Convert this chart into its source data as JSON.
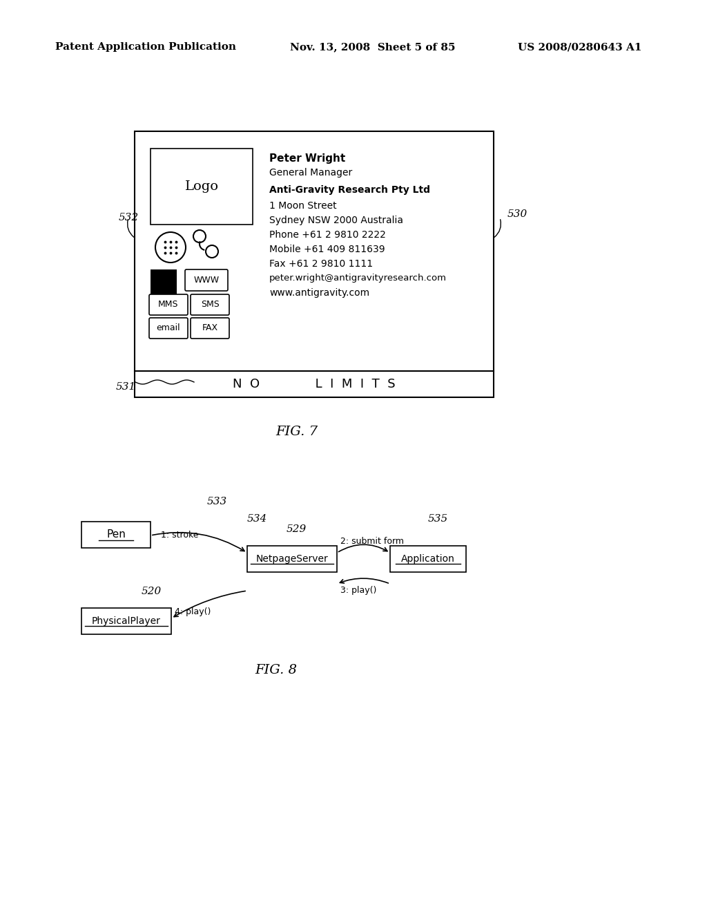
{
  "bg_color": "#ffffff",
  "header_left": "Patent Application Publication",
  "header_mid": "Nov. 13, 2008  Sheet 5 of 85",
  "header_right": "US 2008/0280643 A1",
  "fig7_title": "FIG. 7",
  "fig8_title": "FIG. 8",
  "card_label": "530",
  "card_left_label": "532",
  "card_bottom_label": "531",
  "card_tagline": "N  O              L  I  M  I  T  S",
  "card_name": "Peter Wright",
  "card_title_text": "General Manager",
  "card_company": "Anti-Gravity Research Pty Ltd",
  "card_address1": "1 Moon Street",
  "card_address2": "Sydney NSW 2000 Australia",
  "card_phone": "Phone +61 2 9810 2222",
  "card_mobile": "Mobile +61 409 811639",
  "card_fax": "Fax +61 2 9810 1111",
  "card_email": "peter.wright@antigravityresearch.com",
  "card_web": "www.antigravity.com",
  "logo_text": "Logo",
  "btn_www": "WWW",
  "btn_mms": "MMS",
  "btn_sms": "SMS",
  "btn_email": "email",
  "btn_fax": "FAX",
  "seq_pen_label": "533",
  "seq_534_label": "534",
  "seq_529_label": "529",
  "seq_535_label": "535",
  "seq_520_label": "520",
  "seq_pen": "Pen",
  "seq_netpage": "NetpageServer",
  "seq_app": "Application",
  "seq_player": "PhysicalPlayer",
  "seq_arrow1": "1: stroke",
  "seq_arrow2": "2: submit form",
  "seq_arrow3": "3: play()",
  "seq_arrow4": "4: play()"
}
